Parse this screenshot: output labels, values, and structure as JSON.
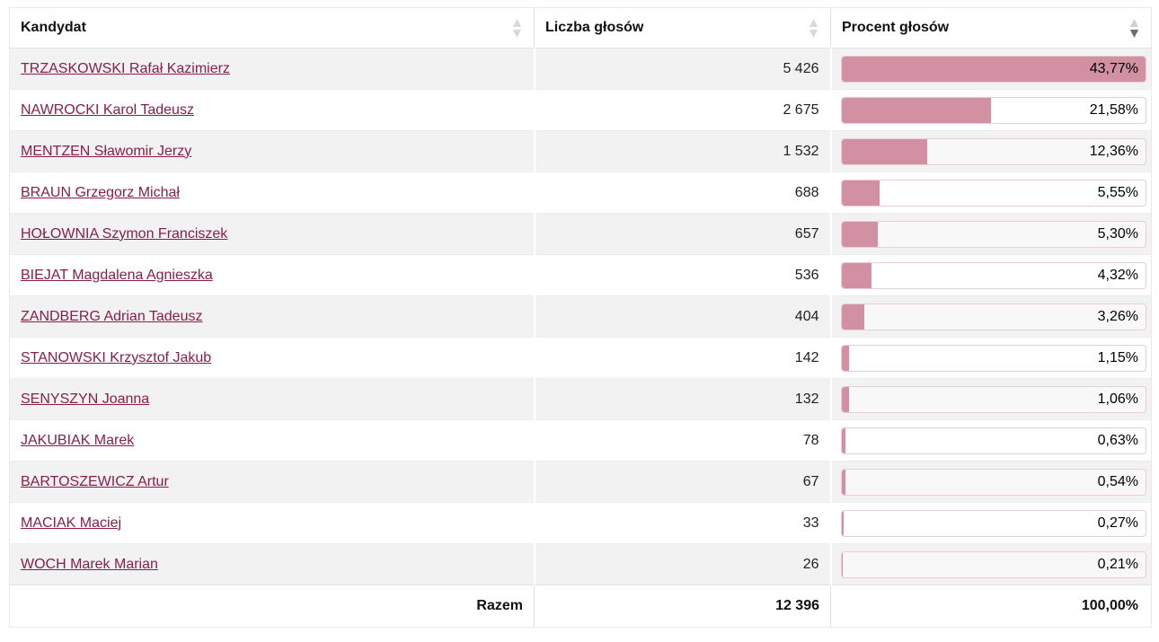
{
  "table": {
    "columns": [
      {
        "label": "Kandydat",
        "sort": "none"
      },
      {
        "label": "Liczba głosów",
        "sort": "none"
      },
      {
        "label": "Procent głosów",
        "sort": "desc"
      }
    ],
    "rows": [
      {
        "candidate": "TRZASKOWSKI Rafał Kazimierz",
        "votes": "5 426",
        "percent": "43,77%",
        "pct": 43.77
      },
      {
        "candidate": "NAWROCKI Karol Tadeusz",
        "votes": "2 675",
        "percent": "21,58%",
        "pct": 21.58
      },
      {
        "candidate": "MENTZEN Sławomir Jerzy",
        "votes": "1 532",
        "percent": "12,36%",
        "pct": 12.36
      },
      {
        "candidate": "BRAUN Grzegorz Michał",
        "votes": "688",
        "percent": "5,55%",
        "pct": 5.55
      },
      {
        "candidate": "HOŁOWNIA Szymon Franciszek",
        "votes": "657",
        "percent": "5,30%",
        "pct": 5.3
      },
      {
        "candidate": "BIEJAT Magdalena Agnieszka",
        "votes": "536",
        "percent": "4,32%",
        "pct": 4.32
      },
      {
        "candidate": "ZANDBERG Adrian Tadeusz",
        "votes": "404",
        "percent": "3,26%",
        "pct": 3.26
      },
      {
        "candidate": "STANOWSKI Krzysztof Jakub",
        "votes": "142",
        "percent": "1,15%",
        "pct": 1.15
      },
      {
        "candidate": "SENYSZYN Joanna",
        "votes": "132",
        "percent": "1,06%",
        "pct": 1.06
      },
      {
        "candidate": "JAKUBIAK Marek",
        "votes": "78",
        "percent": "0,63%",
        "pct": 0.63
      },
      {
        "candidate": "BARTOSZEWICZ Artur",
        "votes": "67",
        "percent": "0,54%",
        "pct": 0.54
      },
      {
        "candidate": "MACIAK Maciej",
        "votes": "33",
        "percent": "0,27%",
        "pct": 0.27
      },
      {
        "candidate": "WOCH Marek Marian",
        "votes": "26",
        "percent": "0,21%",
        "pct": 0.21
      }
    ],
    "footer": {
      "label": "Razem",
      "votes": "12 396",
      "percent": "100,00%"
    }
  },
  "chart_data": {
    "type": "bar",
    "title": "Procent głosów",
    "categories": [
      "TRZASKOWSKI Rafał Kazimierz",
      "NAWROCKI Karol Tadeusz",
      "MENTZEN Sławomir Jerzy",
      "BRAUN Grzegorz Michał",
      "HOŁOWNIA Szymon Franciszek",
      "BIEJAT Magdalena Agnieszka",
      "ZANDBERG Adrian Tadeusz",
      "STANOWSKI Krzysztof Jakub",
      "SENYSZYN Joanna",
      "JAKUBIAK Marek",
      "BARTOSZEWICZ Artur",
      "MACIAK Maciej",
      "WOCH Marek Marian"
    ],
    "values": [
      43.77,
      21.58,
      12.36,
      5.55,
      5.3,
      4.32,
      3.26,
      1.15,
      1.06,
      0.63,
      0.54,
      0.27,
      0.21
    ],
    "votes": [
      5426,
      2675,
      1532,
      688,
      657,
      536,
      404,
      142,
      132,
      78,
      67,
      33,
      26
    ],
    "total_votes": 12396,
    "total_percent": 100.0,
    "bar_scale_max": 43.77,
    "xlabel": "",
    "ylabel": "Procent głosów",
    "legend": false,
    "grid": false
  },
  "colors": {
    "bar_fill": "#d191a3",
    "bar_border": "#eccdd7",
    "link": "#8b1e47",
    "row_alt": "#f2f2f2",
    "divider": "#e2e2e2",
    "sort_inactive": "#d8d8d8",
    "sort_active": "#6d6d6d"
  }
}
